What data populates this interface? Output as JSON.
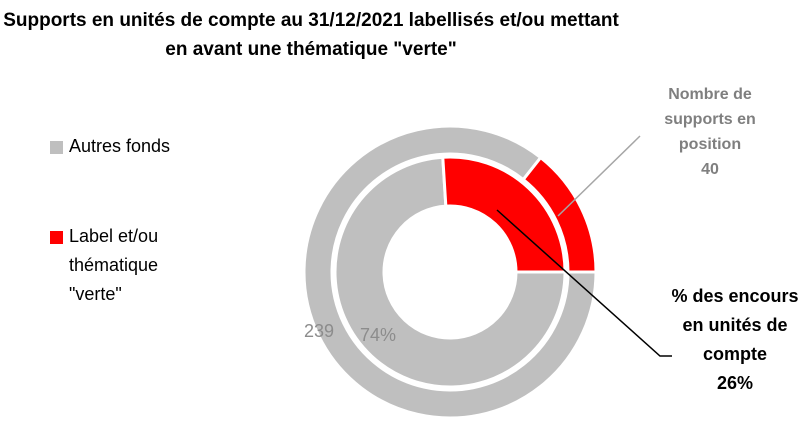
{
  "chart_data": {
    "type": "donut",
    "title": "Supports en unités de compte au 31/12/2021 labellisés et/ou mettant en avant une thématique \"verte\"",
    "categories": [
      "Autres fonds",
      "Label et/ou thématique \"verte\""
    ],
    "colors": [
      "#bfbfbf",
      "#ff0000"
    ],
    "start_angle": 90,
    "series": [
      {
        "name": "Nombre de supports en position",
        "values": [
          239,
          40
        ]
      },
      {
        "name": "% des encours en unités de compte",
        "values": [
          74,
          26
        ],
        "value_labels": [
          "74%",
          "26%"
        ]
      }
    ]
  }
}
